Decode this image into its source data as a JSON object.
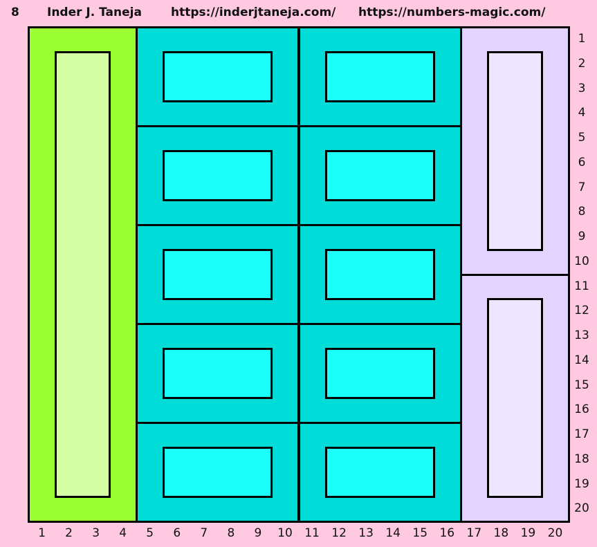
{
  "header": {
    "number": "8",
    "author": "Inder J. Taneja",
    "url1": "https://inderjtaneja.com/",
    "url2": "https://numbers-magic.com/"
  },
  "grid": {
    "rows": 20,
    "cols": 20,
    "column_labels": [
      "1",
      "2",
      "3",
      "4",
      "5",
      "6",
      "7",
      "8",
      "9",
      "10",
      "11",
      "12",
      "13",
      "14",
      "15",
      "16",
      "17",
      "18",
      "19",
      "20"
    ],
    "row_labels": [
      "1",
      "2",
      "3",
      "4",
      "5",
      "6",
      "7",
      "8",
      "9",
      "10",
      "11",
      "12",
      "13",
      "14",
      "15",
      "16",
      "17",
      "18",
      "19",
      "20"
    ],
    "colors": {
      "background": "#ffc9e1",
      "green": "#9cff33",
      "light_green": "#d5ffa4",
      "teal": "#00dcd8",
      "cyan": "#1afffa",
      "lavender": "#e2d3ff",
      "light_lavender": "#eee5ff"
    },
    "fills": [
      {
        "color": "green",
        "cols": [
          1,
          4
        ],
        "rows": [
          1,
          20
        ]
      },
      {
        "color": "light_green",
        "cols": [
          2,
          3
        ],
        "rows": [
          2,
          19
        ]
      },
      {
        "color": "teal",
        "cols": [
          5,
          16
        ],
        "rows": [
          1,
          20
        ]
      },
      {
        "color": "cyan",
        "cols": [
          6,
          9
        ],
        "rows": [
          2,
          3
        ]
      },
      {
        "color": "cyan",
        "cols": [
          12,
          15
        ],
        "rows": [
          2,
          3
        ]
      },
      {
        "color": "cyan",
        "cols": [
          6,
          9
        ],
        "rows": [
          6,
          7
        ]
      },
      {
        "color": "cyan",
        "cols": [
          12,
          15
        ],
        "rows": [
          6,
          7
        ]
      },
      {
        "color": "cyan",
        "cols": [
          6,
          9
        ],
        "rows": [
          10,
          11
        ]
      },
      {
        "color": "cyan",
        "cols": [
          12,
          15
        ],
        "rows": [
          10,
          11
        ]
      },
      {
        "color": "cyan",
        "cols": [
          6,
          9
        ],
        "rows": [
          14,
          15
        ]
      },
      {
        "color": "cyan",
        "cols": [
          12,
          15
        ],
        "rows": [
          14,
          15
        ]
      },
      {
        "color": "cyan",
        "cols": [
          6,
          9
        ],
        "rows": [
          18,
          19
        ]
      },
      {
        "color": "cyan",
        "cols": [
          12,
          15
        ],
        "rows": [
          18,
          19
        ]
      },
      {
        "color": "lavender",
        "cols": [
          17,
          20
        ],
        "rows": [
          1,
          20
        ]
      },
      {
        "color": "light_lavender",
        "cols": [
          18,
          19
        ],
        "rows": [
          2,
          9
        ]
      },
      {
        "color": "light_lavender",
        "cols": [
          18,
          19
        ],
        "rows": [
          12,
          19
        ]
      }
    ],
    "outlined_blocks": [
      {
        "cols": [
          1,
          4
        ],
        "rows": [
          1,
          20
        ]
      },
      {
        "cols": [
          2,
          3
        ],
        "rows": [
          2,
          19
        ]
      },
      {
        "cols": [
          5,
          10
        ],
        "rows": [
          1,
          4
        ]
      },
      {
        "cols": [
          11,
          16
        ],
        "rows": [
          1,
          4
        ]
      },
      {
        "cols": [
          5,
          10
        ],
        "rows": [
          5,
          8
        ]
      },
      {
        "cols": [
          11,
          16
        ],
        "rows": [
          5,
          8
        ]
      },
      {
        "cols": [
          5,
          10
        ],
        "rows": [
          9,
          12
        ]
      },
      {
        "cols": [
          11,
          16
        ],
        "rows": [
          9,
          12
        ]
      },
      {
        "cols": [
          5,
          10
        ],
        "rows": [
          13,
          16
        ]
      },
      {
        "cols": [
          11,
          16
        ],
        "rows": [
          13,
          16
        ]
      },
      {
        "cols": [
          5,
          10
        ],
        "rows": [
          17,
          20
        ]
      },
      {
        "cols": [
          11,
          16
        ],
        "rows": [
          17,
          20
        ]
      },
      {
        "cols": [
          6,
          9
        ],
        "rows": [
          2,
          3
        ]
      },
      {
        "cols": [
          12,
          15
        ],
        "rows": [
          2,
          3
        ]
      },
      {
        "cols": [
          6,
          9
        ],
        "rows": [
          6,
          7
        ]
      },
      {
        "cols": [
          12,
          15
        ],
        "rows": [
          6,
          7
        ]
      },
      {
        "cols": [
          6,
          9
        ],
        "rows": [
          10,
          11
        ]
      },
      {
        "cols": [
          12,
          15
        ],
        "rows": [
          10,
          11
        ]
      },
      {
        "cols": [
          6,
          9
        ],
        "rows": [
          14,
          15
        ]
      },
      {
        "cols": [
          12,
          15
        ],
        "rows": [
          14,
          15
        ]
      },
      {
        "cols": [
          6,
          9
        ],
        "rows": [
          18,
          19
        ]
      },
      {
        "cols": [
          12,
          15
        ],
        "rows": [
          18,
          19
        ]
      },
      {
        "cols": [
          17,
          20
        ],
        "rows": [
          1,
          10
        ]
      },
      {
        "cols": [
          17,
          20
        ],
        "rows": [
          11,
          20
        ]
      },
      {
        "cols": [
          18,
          19
        ],
        "rows": [
          2,
          9
        ]
      },
      {
        "cols": [
          18,
          19
        ],
        "rows": [
          12,
          19
        ]
      },
      {
        "cols": [
          1,
          20
        ],
        "rows": [
          1,
          20
        ]
      }
    ]
  }
}
